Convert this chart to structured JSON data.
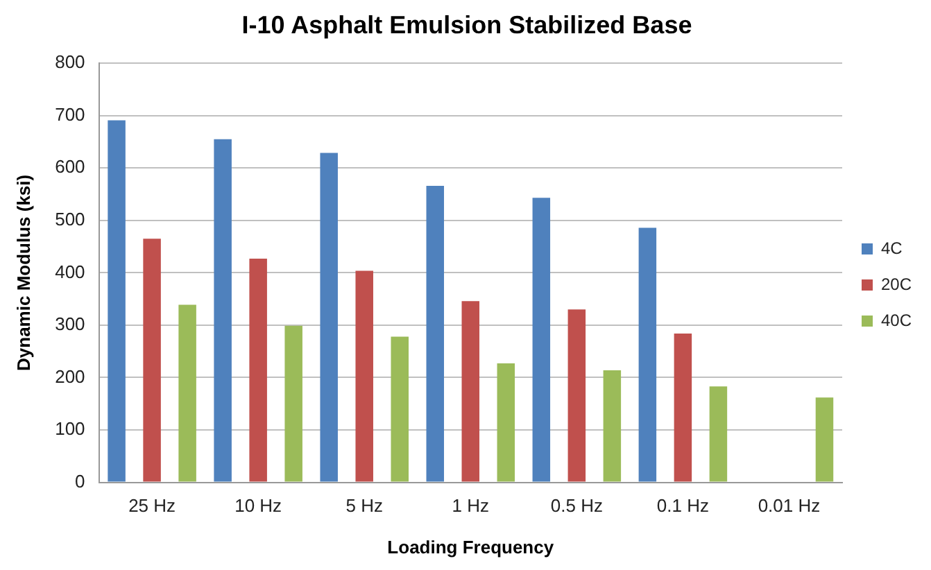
{
  "chart_data": {
    "type": "bar",
    "title": "I-10 Asphalt Emulsion Stabilized Base",
    "xlabel": "Loading Frequency",
    "ylabel": "Dynamic Modulus (ksi)",
    "categories": [
      "25 Hz",
      "10 Hz",
      "5 Hz",
      "1 Hz",
      "0.5 Hz",
      "0.1 Hz",
      "0.01 Hz"
    ],
    "series": [
      {
        "name": "4C",
        "color": "#4f81bd",
        "values": [
          691,
          655,
          629,
          566,
          543,
          486,
          null
        ]
      },
      {
        "name": "20C",
        "color": "#c0504d",
        "values": [
          465,
          427,
          404,
          346,
          330,
          284,
          null
        ]
      },
      {
        "name": "40C",
        "color": "#9bbb59",
        "values": [
          339,
          299,
          278,
          227,
          214,
          183,
          162
        ]
      }
    ],
    "ylim": [
      0,
      800
    ],
    "yticks": [
      0,
      100,
      200,
      300,
      400,
      500,
      600,
      700,
      800
    ],
    "grid": "y",
    "legend": "right"
  }
}
